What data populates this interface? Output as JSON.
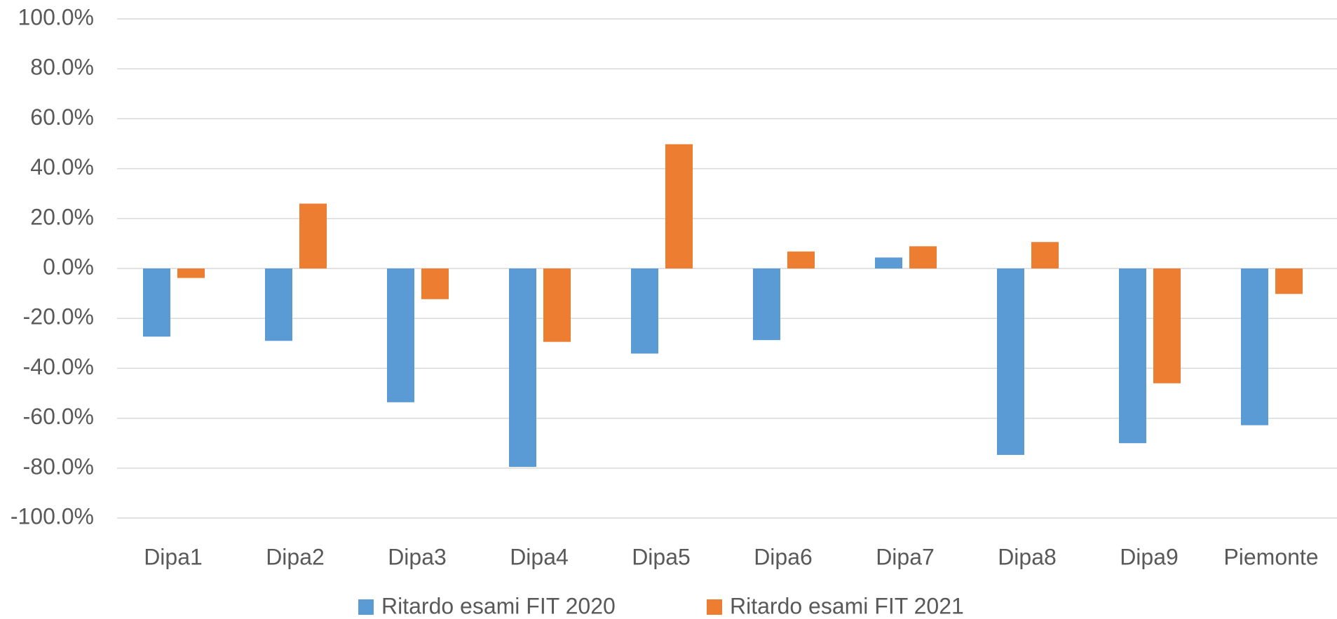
{
  "chart_data": {
    "type": "bar",
    "categories": [
      "Dipa1",
      "Dipa2",
      "Dipa3",
      "Dipa4",
      "Dipa5",
      "Dipa6",
      "Dipa7",
      "Dipa8",
      "Dipa9",
      "Piemonte"
    ],
    "series": [
      {
        "name": "Ritardo esami FIT 2020",
        "color": "#5b9bd5",
        "values": [
          -27.3,
          -29,
          -53.6,
          -79.5,
          -34.1,
          -28.7,
          4.4,
          -74.7,
          -70,
          -62.8
        ]
      },
      {
        "name": "Ritardo esami FIT 2021",
        "color": "#ed7d31",
        "values": [
          -3.8,
          26,
          -12.3,
          -29.4,
          49.8,
          6.8,
          8.9,
          10.6,
          -46,
          -10.2
        ]
      }
    ],
    "ylim": [
      -100,
      100
    ],
    "yticks": [
      {
        "value": -100,
        "label": "-100.0%"
      },
      {
        "value": -80,
        "label": "-80.0%"
      },
      {
        "value": -60,
        "label": "-60.0%"
      },
      {
        "value": -40,
        "label": "-40.0%"
      },
      {
        "value": -20,
        "label": "-20.0%"
      },
      {
        "value": 0,
        "label": "0.0%"
      },
      {
        "value": 20,
        "label": "20.0%"
      },
      {
        "value": 40,
        "label": "40.0%"
      },
      {
        "value": 60,
        "label": "60.0%"
      },
      {
        "value": 80,
        "label": "80.0%"
      },
      {
        "value": 100,
        "label": "100.0%"
      }
    ],
    "grid": true,
    "legend": "bottom"
  }
}
